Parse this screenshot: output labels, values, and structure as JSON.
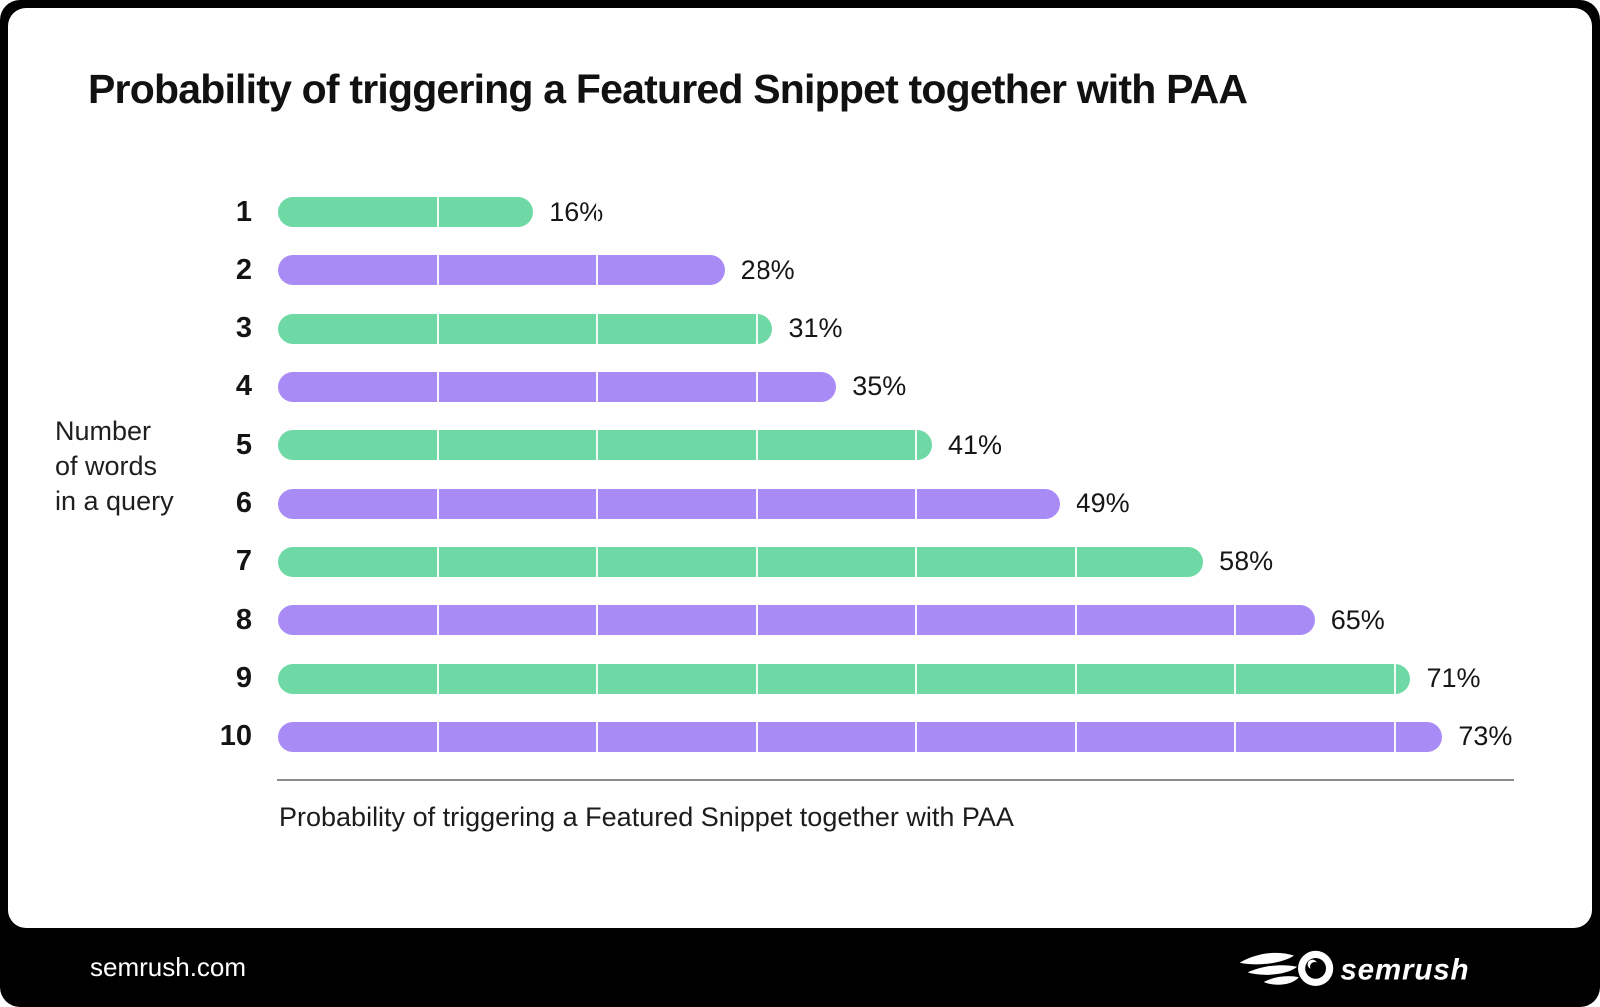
{
  "title": "Probability of triggering a Featured Snippet together with PAA",
  "y_axis_label_lines": [
    "Number",
    "of words",
    "in a query"
  ],
  "x_axis_label": "Probability of triggering a Featured Snippet together with PAA",
  "footer": {
    "site": "semrush.com",
    "logo_text": "semrush",
    "logo_icon": "semrush-flame-icon"
  },
  "colors": {
    "green": "#6FD9A6",
    "purple": "#A98BF6",
    "poster_background": "#000000",
    "card_background": "#FFFFFF",
    "axis_line": "#8D8D8D",
    "text": "#1A1A1A",
    "gridline": "#FFFFFF"
  },
  "chart_data": {
    "type": "bar",
    "orientation": "horizontal",
    "title": "Probability of triggering a Featured Snippet together with PAA",
    "ylabel": "Number of words in a query",
    "xlabel": "Probability of triggering a Featured Snippet together with PAA",
    "categories": [
      "1",
      "2",
      "3",
      "4",
      "5",
      "6",
      "7",
      "8",
      "9",
      "10"
    ],
    "values": [
      16,
      28,
      31,
      35,
      41,
      49,
      58,
      65,
      71,
      73
    ],
    "value_labels": [
      "16%",
      "28%",
      "31%",
      "35%",
      "41%",
      "49%",
      "58%",
      "65%",
      "71%",
      "73%"
    ],
    "unit": "%",
    "bar_color_pattern": [
      "#6FD9A6",
      "#A98BF6"
    ],
    "xlim": [
      0,
      73
    ],
    "gridline_interval": 10,
    "grid": true,
    "legend": false
  }
}
